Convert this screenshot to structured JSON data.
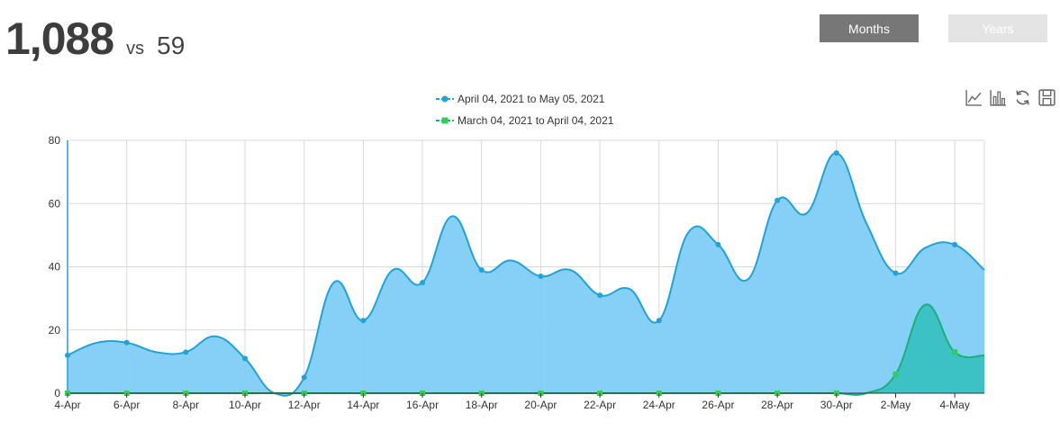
{
  "summary": {
    "current_total": "1,088",
    "vs_label": "vs",
    "previous_total": "59"
  },
  "buttons": {
    "months": "Months",
    "years": "Years"
  },
  "toolbox_icons": [
    "line-chart-icon",
    "bar-chart-icon",
    "refresh-icon",
    "save-icon"
  ],
  "colors": {
    "series_current": "#1fa3d9",
    "series_current_fill": "#7fcdf7",
    "series_previous": "#1bb07a",
    "series_previous_fill": "#34bfbf",
    "previous_marker": "#33cc55",
    "button_active": "#777777",
    "button_inactive": "#e4e4e4"
  },
  "chart_data": {
    "type": "area",
    "x": [
      "4-Apr",
      "5-Apr",
      "6-Apr",
      "7-Apr",
      "8-Apr",
      "9-Apr",
      "10-Apr",
      "11-Apr",
      "12-Apr",
      "13-Apr",
      "14-Apr",
      "15-Apr",
      "16-Apr",
      "17-Apr",
      "18-Apr",
      "19-Apr",
      "20-Apr",
      "21-Apr",
      "22-Apr",
      "23-Apr",
      "24-Apr",
      "25-Apr",
      "26-Apr",
      "27-Apr",
      "28-Apr",
      "29-Apr",
      "30-Apr",
      "1-May",
      "2-May",
      "3-May",
      "4-May",
      "5-May"
    ],
    "xtick_labels": [
      "4-Apr",
      "6-Apr",
      "8-Apr",
      "10-Apr",
      "12-Apr",
      "14-Apr",
      "16-Apr",
      "18-Apr",
      "20-Apr",
      "22-Apr",
      "24-Apr",
      "26-Apr",
      "28-Apr",
      "30-Apr",
      "2-May",
      "4-May"
    ],
    "series": [
      {
        "name": "April 04, 2021 to May 05, 2021",
        "values": [
          12,
          16,
          16,
          13,
          13,
          18,
          11,
          0,
          5,
          35,
          23,
          39,
          35,
          56,
          39,
          42,
          37,
          39,
          31,
          33,
          23,
          51,
          47,
          36,
          61,
          57,
          76,
          54,
          38,
          46,
          47,
          39
        ]
      },
      {
        "name": "March 04, 2021 to April 04, 2021",
        "values": [
          0,
          0,
          0,
          0,
          0,
          0,
          0,
          0,
          0,
          0,
          0,
          0,
          0,
          0,
          0,
          0,
          0,
          0,
          0,
          0,
          0,
          0,
          0,
          0,
          0,
          0,
          0,
          0,
          6,
          28,
          13,
          12
        ]
      }
    ],
    "ylim": [
      0,
      80
    ],
    "yticks": [
      0,
      20,
      40,
      60,
      80
    ],
    "grid": true,
    "legend_position": "top-center",
    "smooth": true
  }
}
